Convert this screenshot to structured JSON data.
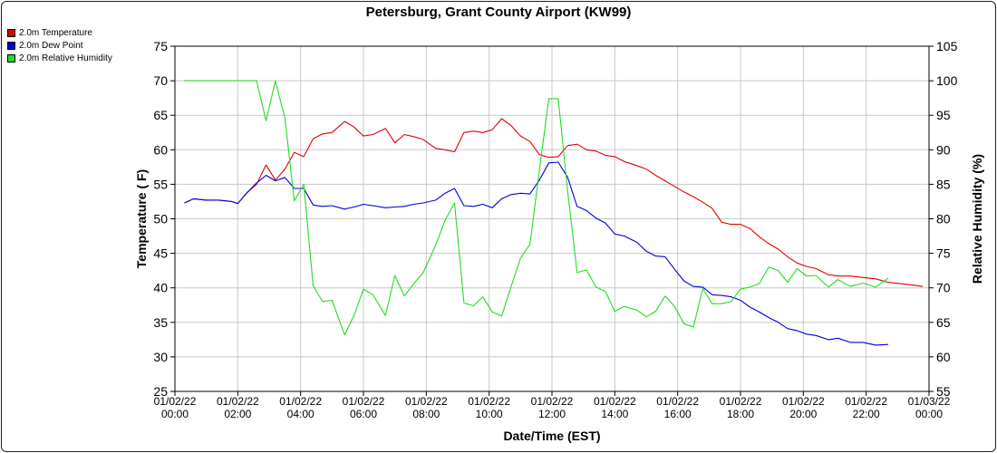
{
  "chart_data": {
    "type": "line",
    "title": "Petersburg, Grant County Airport (KW99)",
    "xlabel": "Date/Time (EST)",
    "ylabel_left": "Temperature ( F)",
    "ylabel_right": "Relative Humidity (%)",
    "xlim": [
      0,
      24
    ],
    "ylim_left": [
      25,
      75
    ],
    "ylim_right": [
      55,
      105
    ],
    "grid": true,
    "legend_placement": "top-left outside",
    "x_ticks": [
      {
        "h": 0,
        "label": [
          "01/02/22",
          "00:00"
        ]
      },
      {
        "h": 2,
        "label": [
          "01/02/22",
          "02:00"
        ]
      },
      {
        "h": 4,
        "label": [
          "01/02/22",
          "04:00"
        ]
      },
      {
        "h": 6,
        "label": [
          "01/02/22",
          "06:00"
        ]
      },
      {
        "h": 8,
        "label": [
          "01/02/22",
          "08:00"
        ]
      },
      {
        "h": 10,
        "label": [
          "01/02/22",
          "10:00"
        ]
      },
      {
        "h": 12,
        "label": [
          "01/02/22",
          "12:00"
        ]
      },
      {
        "h": 14,
        "label": [
          "01/02/22",
          "14:00"
        ]
      },
      {
        "h": 16,
        "label": [
          "01/02/22",
          "16:00"
        ]
      },
      {
        "h": 18,
        "label": [
          "01/02/22",
          "18:00"
        ]
      },
      {
        "h": 20,
        "label": [
          "01/02/22",
          "20:00"
        ]
      },
      {
        "h": 22,
        "label": [
          "01/02/22",
          "22:00"
        ]
      },
      {
        "h": 24,
        "label": [
          "01/03/22",
          "00:00"
        ]
      }
    ],
    "y_ticks_left": [
      "25",
      "30",
      "35",
      "40",
      "45",
      "50",
      "55",
      "60",
      "65",
      "70",
      "75"
    ],
    "y_ticks_right": [
      "55",
      "60",
      "65",
      "70",
      "75",
      "80",
      "85",
      "90",
      "95",
      "100",
      "105"
    ],
    "series": [
      {
        "name": "2.0m Temperature",
        "color": "#e00000",
        "axis": "left",
        "points": [
          [
            0.3,
            52.3
          ],
          [
            0.6,
            52.9
          ],
          [
            1.0,
            52.7
          ],
          [
            1.4,
            52.7
          ],
          [
            1.8,
            52.5
          ],
          [
            2.0,
            52.2
          ],
          [
            2.3,
            53.8
          ],
          [
            2.6,
            55.0
          ],
          [
            2.9,
            57.8
          ],
          [
            3.2,
            55.6
          ],
          [
            3.5,
            57.2
          ],
          [
            3.8,
            59.6
          ],
          [
            4.1,
            59.0
          ],
          [
            4.4,
            61.6
          ],
          [
            4.7,
            62.3
          ],
          [
            5.0,
            62.5
          ],
          [
            5.4,
            64.1
          ],
          [
            5.7,
            63.3
          ],
          [
            6.0,
            62.0
          ],
          [
            6.3,
            62.2
          ],
          [
            6.7,
            63.1
          ],
          [
            7.0,
            61.0
          ],
          [
            7.3,
            62.2
          ],
          [
            7.6,
            61.9
          ],
          [
            7.9,
            61.5
          ],
          [
            8.3,
            60.2
          ],
          [
            8.6,
            60.0
          ],
          [
            8.9,
            59.7
          ],
          [
            9.2,
            62.5
          ],
          [
            9.5,
            62.7
          ],
          [
            9.8,
            62.5
          ],
          [
            10.1,
            62.9
          ],
          [
            10.4,
            64.5
          ],
          [
            10.7,
            63.5
          ],
          [
            11.0,
            62.0
          ],
          [
            11.3,
            61.2
          ],
          [
            11.6,
            59.3
          ],
          [
            11.9,
            58.9
          ],
          [
            12.2,
            59.0
          ],
          [
            12.5,
            60.6
          ],
          [
            12.8,
            60.8
          ],
          [
            13.1,
            60.0
          ],
          [
            13.4,
            59.8
          ],
          [
            13.7,
            59.2
          ],
          [
            14.0,
            59.0
          ],
          [
            14.3,
            58.3
          ],
          [
            14.7,
            57.7
          ],
          [
            15.0,
            57.2
          ],
          [
            15.3,
            56.3
          ],
          [
            15.6,
            55.5
          ],
          [
            15.9,
            54.7
          ],
          [
            16.2,
            53.9
          ],
          [
            16.5,
            53.2
          ],
          [
            16.8,
            52.4
          ],
          [
            17.1,
            51.5
          ],
          [
            17.4,
            49.5
          ],
          [
            17.7,
            49.2
          ],
          [
            18.0,
            49.2
          ],
          [
            18.3,
            48.6
          ],
          [
            18.6,
            47.4
          ],
          [
            18.9,
            46.4
          ],
          [
            19.2,
            45.6
          ],
          [
            19.5,
            44.5
          ],
          [
            19.8,
            43.6
          ],
          [
            20.1,
            43.1
          ],
          [
            20.4,
            42.8
          ],
          [
            20.8,
            41.9
          ],
          [
            21.1,
            41.7
          ],
          [
            21.5,
            41.7
          ],
          [
            21.9,
            41.5
          ],
          [
            22.3,
            41.3
          ],
          [
            22.7,
            40.8
          ],
          [
            23.1,
            40.6
          ],
          [
            23.5,
            40.4
          ],
          [
            23.8,
            40.2
          ]
        ]
      },
      {
        "name": "2.0m Dew Point",
        "color": "#0000dd",
        "axis": "left",
        "points": [
          [
            0.3,
            52.3
          ],
          [
            0.6,
            52.9
          ],
          [
            1.0,
            52.7
          ],
          [
            1.4,
            52.7
          ],
          [
            1.8,
            52.5
          ],
          [
            2.0,
            52.2
          ],
          [
            2.3,
            53.8
          ],
          [
            2.6,
            55.2
          ],
          [
            2.9,
            56.3
          ],
          [
            3.2,
            55.5
          ],
          [
            3.5,
            56.0
          ],
          [
            3.8,
            54.4
          ],
          [
            4.1,
            54.4
          ],
          [
            4.4,
            52.0
          ],
          [
            4.7,
            51.8
          ],
          [
            5.0,
            51.9
          ],
          [
            5.4,
            51.4
          ],
          [
            5.7,
            51.7
          ],
          [
            6.0,
            52.1
          ],
          [
            6.3,
            51.9
          ],
          [
            6.7,
            51.6
          ],
          [
            7.0,
            51.7
          ],
          [
            7.3,
            51.8
          ],
          [
            7.6,
            52.1
          ],
          [
            7.9,
            52.3
          ],
          [
            8.3,
            52.7
          ],
          [
            8.6,
            53.7
          ],
          [
            8.9,
            54.4
          ],
          [
            9.2,
            51.9
          ],
          [
            9.5,
            51.8
          ],
          [
            9.8,
            52.1
          ],
          [
            10.1,
            51.6
          ],
          [
            10.4,
            52.9
          ],
          [
            10.7,
            53.5
          ],
          [
            11.0,
            53.7
          ],
          [
            11.3,
            53.6
          ],
          [
            11.6,
            55.6
          ],
          [
            11.9,
            58.1
          ],
          [
            12.2,
            58.2
          ],
          [
            12.5,
            56.0
          ],
          [
            12.8,
            51.8
          ],
          [
            13.1,
            51.2
          ],
          [
            13.4,
            50.1
          ],
          [
            13.7,
            49.4
          ],
          [
            14.0,
            47.8
          ],
          [
            14.3,
            47.5
          ],
          [
            14.7,
            46.6
          ],
          [
            15.0,
            45.3
          ],
          [
            15.3,
            44.6
          ],
          [
            15.6,
            44.5
          ],
          [
            15.9,
            42.7
          ],
          [
            16.2,
            41.0
          ],
          [
            16.5,
            40.2
          ],
          [
            16.8,
            40.1
          ],
          [
            17.1,
            39.0
          ],
          [
            17.4,
            38.9
          ],
          [
            17.7,
            38.7
          ],
          [
            18.0,
            38.2
          ],
          [
            18.3,
            37.2
          ],
          [
            18.6,
            36.5
          ],
          [
            18.9,
            35.7
          ],
          [
            19.2,
            35.0
          ],
          [
            19.5,
            34.1
          ],
          [
            19.8,
            33.8
          ],
          [
            20.1,
            33.3
          ],
          [
            20.4,
            33.1
          ],
          [
            20.8,
            32.5
          ],
          [
            21.1,
            32.7
          ],
          [
            21.5,
            32.1
          ],
          [
            21.9,
            32.1
          ],
          [
            22.3,
            31.7
          ],
          [
            22.7,
            31.8
          ]
        ]
      },
      {
        "name": "2.0m Relative Humidity",
        "color": "#22dd22",
        "axis": "right",
        "points": [
          [
            0.3,
            100.0
          ],
          [
            2.6,
            100.0
          ],
          [
            2.9,
            94.2
          ],
          [
            3.2,
            100.0
          ],
          [
            3.5,
            94.6
          ],
          [
            3.8,
            82.6
          ],
          [
            4.1,
            85.0
          ],
          [
            4.4,
            70.3
          ],
          [
            4.7,
            68.0
          ],
          [
            5.0,
            68.2
          ],
          [
            5.4,
            63.2
          ],
          [
            5.7,
            66.0
          ],
          [
            6.0,
            69.8
          ],
          [
            6.3,
            69.0
          ],
          [
            6.7,
            66.0
          ],
          [
            7.0,
            71.8
          ],
          [
            7.3,
            68.8
          ],
          [
            7.6,
            70.6
          ],
          [
            7.9,
            72.2
          ],
          [
            8.3,
            76.2
          ],
          [
            8.6,
            79.8
          ],
          [
            8.9,
            82.3
          ],
          [
            9.2,
            67.8
          ],
          [
            9.5,
            67.4
          ],
          [
            9.8,
            68.7
          ],
          [
            10.1,
            66.5
          ],
          [
            10.4,
            65.9
          ],
          [
            10.7,
            70.2
          ],
          [
            11.0,
            74.3
          ],
          [
            11.3,
            76.3
          ],
          [
            11.6,
            87.0
          ],
          [
            11.9,
            97.4
          ],
          [
            12.2,
            97.4
          ],
          [
            12.5,
            84.0
          ],
          [
            12.8,
            72.2
          ],
          [
            13.1,
            72.6
          ],
          [
            13.4,
            70.1
          ],
          [
            13.7,
            69.5
          ],
          [
            14.0,
            66.6
          ],
          [
            14.3,
            67.3
          ],
          [
            14.7,
            66.8
          ],
          [
            15.0,
            65.8
          ],
          [
            15.3,
            66.6
          ],
          [
            15.6,
            68.8
          ],
          [
            15.9,
            67.3
          ],
          [
            16.2,
            64.8
          ],
          [
            16.5,
            64.3
          ],
          [
            16.8,
            69.9
          ],
          [
            17.1,
            67.7
          ],
          [
            17.4,
            67.7
          ],
          [
            17.7,
            68.0
          ],
          [
            18.0,
            69.8
          ],
          [
            18.3,
            70.1
          ],
          [
            18.6,
            70.6
          ],
          [
            18.9,
            73.0
          ],
          [
            19.2,
            72.5
          ],
          [
            19.5,
            70.8
          ],
          [
            19.8,
            72.8
          ],
          [
            20.1,
            71.7
          ],
          [
            20.4,
            71.8
          ],
          [
            20.8,
            70.1
          ],
          [
            21.1,
            71.2
          ],
          [
            21.5,
            70.2
          ],
          [
            21.9,
            70.7
          ],
          [
            22.3,
            70.1
          ],
          [
            22.7,
            71.4
          ]
        ]
      }
    ]
  }
}
